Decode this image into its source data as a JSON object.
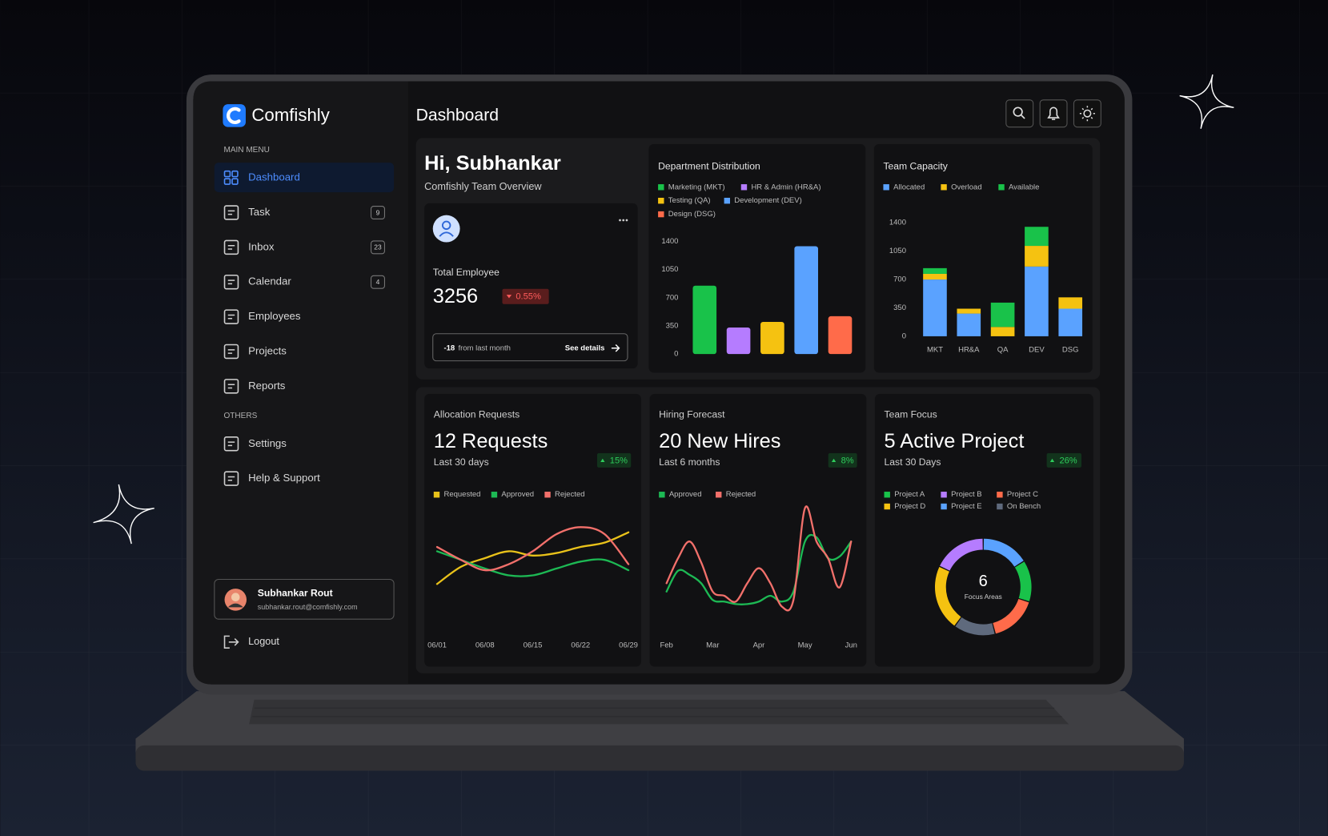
{
  "brand": "Comfishly",
  "header": {
    "title": "Dashboard"
  },
  "sidebar": {
    "main_menu": {
      "label": "MAIN MENU",
      "items": [
        {
          "label": "Dashboard"
        },
        {
          "label": "Task",
          "badge": 9
        },
        {
          "label": "Inbox",
          "badge": 23
        },
        {
          "label": "Calendar",
          "badge": 4
        },
        {
          "label": "Employees"
        },
        {
          "label": "Projects"
        },
        {
          "label": "Reports"
        }
      ]
    },
    "others": {
      "label": "OTHERS",
      "items": [
        {
          "label": "Settings"
        },
        {
          "label": "Help & Support"
        }
      ]
    },
    "user": {
      "name": "Subhankar Rout",
      "email": "subhankar.rout@comfishly.com"
    },
    "logout": "Logout"
  },
  "greeting": {
    "title": "Hi, Subhankar",
    "subtitle": "Comfishly Team Overview"
  },
  "employee_card": {
    "label": "Total Employee",
    "value": 3256,
    "change": "0.55%",
    "delta": -18,
    "delta_text": "from last month",
    "link": "See details"
  },
  "chart_data": [
    {
      "type": "bar",
      "title": "Department Distribution",
      "categories": [
        "Marketing (MKT)",
        "HR & Admin (HR&A)",
        "Testing (QA)",
        "Development (DEV)",
        "Design (DSG)"
      ],
      "values": [
        850,
        330,
        400,
        1340,
        470
      ],
      "colors": [
        "#19c24a",
        "#b57cff",
        "#f5c211",
        "#5aa2ff",
        "#ff6b4a"
      ],
      "ylim": [
        0,
        1400
      ],
      "yticks": [
        0,
        350,
        700,
        1050,
        1400
      ]
    },
    {
      "type": "stacked_bar",
      "title": "Team Capacity",
      "categories": [
        "MKT",
        "HR&A",
        "QA",
        "DEV",
        "DSG"
      ],
      "series": [
        {
          "name": "Allocated",
          "color": "#5aa2ff",
          "values": [
            700,
            280,
            0,
            860,
            340
          ]
        },
        {
          "name": "Overload",
          "color": "#f5c211",
          "values": [
            70,
            60,
            115,
            255,
            140
          ]
        },
        {
          "name": "Available",
          "color": "#19c24a",
          "values": [
            70,
            0,
            300,
            235,
            0
          ]
        }
      ],
      "ylim": [
        0,
        1400
      ],
      "yticks": [
        0,
        350,
        700,
        1050,
        1400
      ]
    },
    {
      "type": "line",
      "title": "Allocation Requests",
      "headline": "12 Requests",
      "subtitle": "Last 30 days",
      "change": "15%",
      "categories": [
        "06/01",
        null,
        "06/08",
        null,
        "06/15",
        null,
        "06/22",
        null,
        "06/29"
      ],
      "series": [
        {
          "name": "Requested",
          "color": "#e9c21a",
          "values": [
            32,
            52,
            62,
            70,
            65,
            68,
            75,
            80,
            92
          ]
        },
        {
          "name": "Approved",
          "color": "#1db954",
          "values": [
            70,
            60,
            50,
            42,
            42,
            50,
            58,
            60,
            48
          ]
        },
        {
          "name": "Rejected",
          "color": "#f2706b",
          "values": [
            75,
            60,
            48,
            55,
            70,
            90,
            98,
            90,
            55
          ]
        }
      ],
      "ylim": [
        0,
        120
      ]
    },
    {
      "type": "line",
      "title": "Hiring Forecast",
      "headline": "20 New Hires",
      "subtitle": "Last 6 months",
      "change": "8%",
      "categories": [
        "Feb",
        null,
        null,
        null,
        "Mar",
        null,
        null,
        null,
        "Apr",
        null,
        null,
        null,
        "May",
        null,
        null,
        null,
        "Jun"
      ],
      "series": [
        {
          "name": "Approved",
          "color": "#1db954",
          "values": [
            30,
            55,
            50,
            40,
            20,
            18,
            15,
            15,
            18,
            25,
            18,
            30,
            90,
            95,
            70,
            72,
            90
          ]
        },
        {
          "name": "Rejected",
          "color": "#f2706b",
          "values": [
            40,
            70,
            90,
            65,
            30,
            25,
            18,
            40,
            58,
            40,
            12,
            20,
            130,
            90,
            70,
            35,
            90
          ]
        }
      ],
      "ylim": [
        0,
        140
      ]
    },
    {
      "type": "donut",
      "title": "Team Focus",
      "headline": "5 Active Project",
      "subtitle": "Last 30 Days",
      "change": "26%",
      "center_value": 6,
      "center_label": "Focus Areas",
      "categories": [
        "Project E",
        "Project A",
        "Project C",
        "On Bench",
        "Project D",
        "Project B"
      ],
      "values": [
        16,
        14,
        16,
        14,
        22,
        18
      ],
      "colors": [
        "#5aa2ff",
        "#19c24a",
        "#ff6b4a",
        "#5f6a7d",
        "#f5c211",
        "#b57cff"
      ]
    }
  ]
}
